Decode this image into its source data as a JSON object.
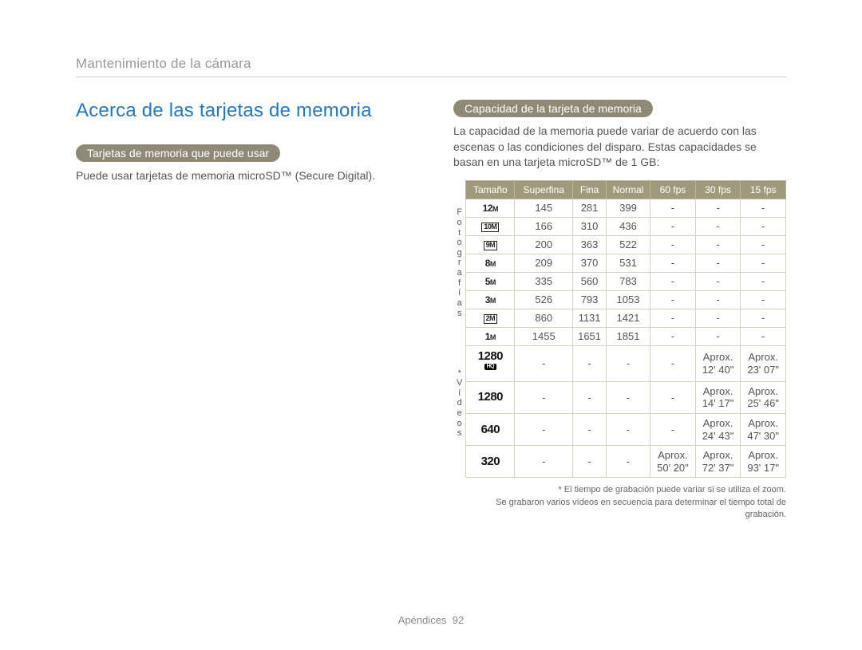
{
  "breadcrumb": "Mantenimiento de la cámara",
  "page_title": "Acerca de las tarjetas de memoria",
  "left": {
    "pill": "Tarjetas de memoria que puede usar",
    "text": "Puede usar tarjetas de memoria microSD™ (Secure Digital)."
  },
  "right": {
    "pill": "Capacidad de la tarjeta de memoria",
    "text": "La capacidad de la memoria puede variar de acuerdo con las escenas o las condiciones del disparo. Estas capacidades se basan en una tarjeta microSD™ de 1 GB:"
  },
  "table": {
    "headers": [
      "Tamaño",
      "Superfina",
      "Fina",
      "Normal",
      "60 fps",
      "30 fps",
      "15 fps"
    ],
    "section_photos_label": "Fotografías",
    "section_videos_label": "* Vídeos",
    "photo_rows": [
      {
        "size_html": "12<span class='m'>M</span>",
        "v": [
          "145",
          "281",
          "399",
          "-",
          "-",
          "-"
        ]
      },
      {
        "size_html": "<span class='boxed'>10M</span>",
        "v": [
          "166",
          "310",
          "436",
          "-",
          "-",
          "-"
        ]
      },
      {
        "size_html": "<span class='boxed'>9M</span>",
        "v": [
          "200",
          "363",
          "522",
          "-",
          "-",
          "-"
        ]
      },
      {
        "size_html": "8<span class='m'>M</span>",
        "v": [
          "209",
          "370",
          "531",
          "-",
          "-",
          "-"
        ]
      },
      {
        "size_html": "5<span class='m'>M</span>",
        "v": [
          "335",
          "560",
          "783",
          "-",
          "-",
          "-"
        ]
      },
      {
        "size_html": "3<span class='m'>M</span>",
        "v": [
          "526",
          "793",
          "1053",
          "-",
          "-",
          "-"
        ]
      },
      {
        "size_html": "<span class='boxed'>2M</span>",
        "v": [
          "860",
          "1131",
          "1421",
          "-",
          "-",
          "-"
        ]
      },
      {
        "size_html": "1<span class='m'>M</span>",
        "v": [
          "1455",
          "1651",
          "1851",
          "-",
          "-",
          "-"
        ]
      }
    ],
    "video_rows": [
      {
        "size": "1280",
        "hq": true,
        "v": [
          "-",
          "-",
          "-",
          "-",
          "Aprox.\n12' 40\"",
          "Aprox.\n23' 07\""
        ]
      },
      {
        "size": "1280",
        "hq": false,
        "v": [
          "-",
          "-",
          "-",
          "-",
          "Aprox.\n14' 17\"",
          "Aprox.\n25' 46\""
        ]
      },
      {
        "size": "640",
        "hq": false,
        "v": [
          "-",
          "-",
          "-",
          "-",
          "Aprox.\n24' 43\"",
          "Aprox.\n47' 30\""
        ]
      },
      {
        "size": "320",
        "hq": false,
        "v": [
          "-",
          "-",
          "-",
          "Aprox.\n50' 20\"",
          "Aprox.\n72' 37\"",
          "Aprox.\n93' 17\""
        ]
      }
    ]
  },
  "footnotes": {
    "l1": "* El tiempo de grabación puede variar si se utiliza el zoom.",
    "l2": "Se grabaron varios vídeos en secuencia para determinar el tiempo total de grabación."
  },
  "footer": {
    "section": "Apéndices",
    "page": "92"
  },
  "colors": {
    "pill_bg": "#8f8a75",
    "th_bg": "#a09a7d",
    "title": "#1f78c8",
    "border": "#d8d3c0"
  }
}
